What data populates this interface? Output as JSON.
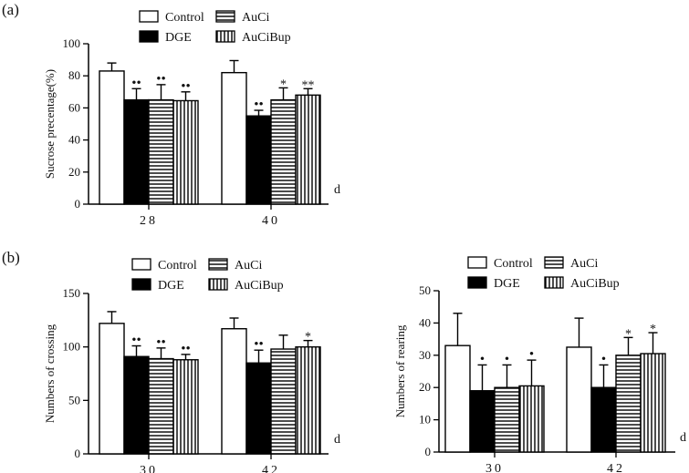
{
  "panel_labels": {
    "a": "(a)",
    "b": "(b)"
  },
  "colors": {
    "control": "#ffffff",
    "dge": "#000000",
    "stroke": "#000000"
  },
  "chart_data": [
    {
      "id": "chartA",
      "type": "bar",
      "title": "",
      "ylabel": "Sucrose precentage(%)",
      "xlabel": "d",
      "ylim": [
        0,
        100
      ],
      "yticks": [
        "0",
        "20",
        "40",
        "60",
        "80",
        "100"
      ],
      "categories": [
        "28",
        "40"
      ],
      "legend": [
        {
          "name": "Control",
          "pattern": "white"
        },
        {
          "name": "AuCi",
          "pattern": "hlines"
        },
        {
          "name": "DGE",
          "pattern": "black"
        },
        {
          "name": "AuCiBup",
          "pattern": "vlines"
        }
      ],
      "series": [
        {
          "name": "Control",
          "pattern": "white",
          "values": [
            83,
            82
          ],
          "errors": [
            5,
            7.5
          ],
          "marks": [
            "",
            ""
          ]
        },
        {
          "name": "DGE",
          "pattern": "black",
          "values": [
            65,
            55
          ],
          "errors": [
            7,
            3.5
          ],
          "marks": [
            "••",
            "••"
          ]
        },
        {
          "name": "AuCi",
          "pattern": "hlines",
          "values": [
            65,
            65
          ],
          "errors": [
            9.5,
            7.5
          ],
          "marks": [
            "••",
            "*"
          ]
        },
        {
          "name": "AuCiBup",
          "pattern": "vlines",
          "values": [
            64.5,
            68
          ],
          "errors": [
            5.5,
            4
          ],
          "marks": [
            "••",
            "**"
          ]
        }
      ]
    },
    {
      "id": "chartB1",
      "type": "bar",
      "title": "",
      "ylabel": "Numbers of crossing",
      "xlabel": "d",
      "ylim": [
        0,
        150
      ],
      "yticks": [
        "0",
        "50",
        "100",
        "150"
      ],
      "categories": [
        "30",
        "42"
      ],
      "legend": [
        {
          "name": "Control",
          "pattern": "white"
        },
        {
          "name": "AuCi",
          "pattern": "hlines"
        },
        {
          "name": "DGE",
          "pattern": "black"
        },
        {
          "name": "AuCiBup",
          "pattern": "vlines"
        }
      ],
      "series": [
        {
          "name": "Control",
          "pattern": "white",
          "values": [
            122,
            117
          ],
          "errors": [
            11,
            10
          ],
          "marks": [
            "",
            ""
          ]
        },
        {
          "name": "DGE",
          "pattern": "black",
          "values": [
            91,
            85
          ],
          "errors": [
            10,
            12
          ],
          "marks": [
            "••",
            "••"
          ]
        },
        {
          "name": "AuCi",
          "pattern": "hlines",
          "values": [
            89,
            98
          ],
          "errors": [
            10,
            13
          ],
          "marks": [
            "••",
            ""
          ]
        },
        {
          "name": "AuCiBup",
          "pattern": "vlines",
          "values": [
            88,
            100
          ],
          "errors": [
            5,
            6
          ],
          "marks": [
            "••",
            "*"
          ]
        }
      ]
    },
    {
      "id": "chartB2",
      "type": "bar",
      "title": "",
      "ylabel": "Numbers of rearing",
      "xlabel": "d",
      "ylim": [
        0,
        50
      ],
      "yticks": [
        "0",
        "10",
        "20",
        "30",
        "40",
        "50"
      ],
      "categories": [
        "30",
        "42"
      ],
      "legend": [
        {
          "name": "Control",
          "pattern": "white"
        },
        {
          "name": "AuCi",
          "pattern": "hlines"
        },
        {
          "name": "DGE",
          "pattern": "black"
        },
        {
          "name": "AuCiBup",
          "pattern": "vlines"
        }
      ],
      "series": [
        {
          "name": "Control",
          "pattern": "white",
          "values": [
            33,
            32.5
          ],
          "errors": [
            10,
            9
          ],
          "marks": [
            "",
            ""
          ]
        },
        {
          "name": "DGE",
          "pattern": "black",
          "values": [
            19,
            20
          ],
          "errors": [
            8,
            7
          ],
          "marks": [
            "•",
            "•"
          ]
        },
        {
          "name": "AuCi",
          "pattern": "hlines",
          "values": [
            20,
            30
          ],
          "errors": [
            7,
            5.5
          ],
          "marks": [
            "•",
            "*"
          ]
        },
        {
          "name": "AuCiBup",
          "pattern": "vlines",
          "values": [
            20.5,
            30.5
          ],
          "errors": [
            8,
            6.5
          ],
          "marks": [
            "•",
            "*"
          ]
        }
      ]
    }
  ]
}
